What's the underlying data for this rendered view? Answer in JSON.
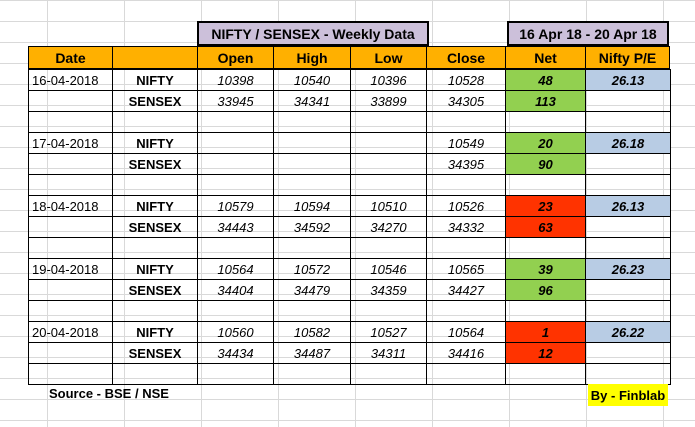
{
  "title": "NIFTY / SENSEX - Weekly Data",
  "date_range": "16 Apr 18 - 20 Apr 18",
  "headers": {
    "date": "Date",
    "index": "",
    "open": "Open",
    "high": "High",
    "low": "Low",
    "close": "Close",
    "net": "Net",
    "pe": "Nifty P/E"
  },
  "days": [
    {
      "date": "16-04-2018",
      "nifty": {
        "label": "NIFTY",
        "open": "10398",
        "high": "10540",
        "low": "10396",
        "close": "10528",
        "net": "48",
        "pe": "26.13"
      },
      "sensex": {
        "label": "SENSEX",
        "open": "33945",
        "high": "34341",
        "low": "33899",
        "close": "34305",
        "net": "113"
      }
    },
    {
      "date": "17-04-2018",
      "nifty": {
        "label": "NIFTY",
        "open": "",
        "high": "",
        "low": "",
        "close": "10549",
        "net": "20",
        "pe": "26.18"
      },
      "sensex": {
        "label": "SENSEX",
        "open": "",
        "high": "",
        "low": "",
        "close": "34395",
        "net": "90"
      }
    },
    {
      "date": "18-04-2018",
      "nifty": {
        "label": "NIFTY",
        "open": "10579",
        "high": "10594",
        "low": "10510",
        "close": "10526",
        "net": "23",
        "pe": "26.13"
      },
      "sensex": {
        "label": "SENSEX",
        "open": "34443",
        "high": "34592",
        "low": "34270",
        "close": "34332",
        "net": "63"
      }
    },
    {
      "date": "19-04-2018",
      "nifty": {
        "label": "NIFTY",
        "open": "10564",
        "high": "10572",
        "low": "10546",
        "close": "10565",
        "net": "39",
        "pe": "26.23"
      },
      "sensex": {
        "label": "SENSEX",
        "open": "34404",
        "high": "34479",
        "low": "34359",
        "close": "34427",
        "net": "96"
      }
    },
    {
      "date": "20-04-2018",
      "nifty": {
        "label": "NIFTY",
        "open": "10560",
        "high": "10582",
        "low": "10527",
        "close": "10564",
        "net": "1",
        "pe": "26.22"
      },
      "sensex": {
        "label": "SENSEX",
        "open": "34434",
        "high": "34487",
        "low": "34311",
        "close": "34416",
        "net": "12"
      }
    }
  ],
  "net_colors": {
    "positive": "#92d050",
    "negative": "#ff3300"
  },
  "net_status": [
    "positive",
    "positive",
    "negative",
    "positive",
    "negative"
  ],
  "pe_color": "#b8cce4",
  "header_color": "#ffb000",
  "title_color": "#ccc0da",
  "footer": {
    "source": "Source - BSE / NSE",
    "by": "By - Finblab"
  }
}
